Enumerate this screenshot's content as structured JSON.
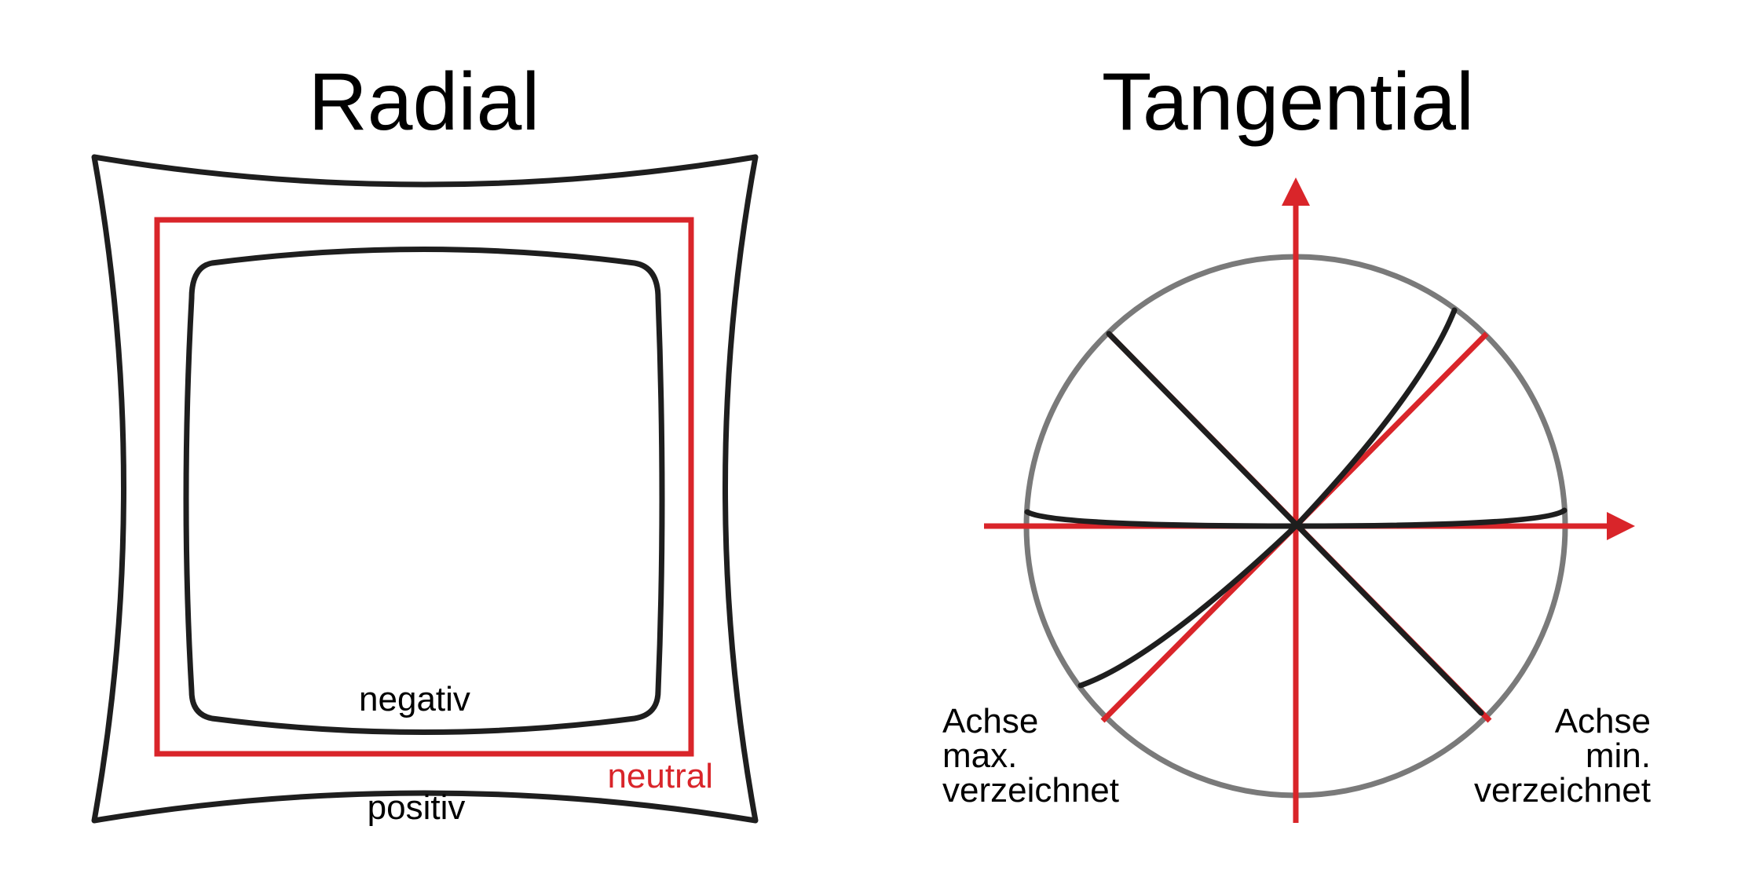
{
  "panels": {
    "radial": {
      "title": "Radial",
      "label_negative": "negativ",
      "label_neutral": "neutral",
      "label_positive": "positiv"
    },
    "tangential": {
      "title": "Tangential",
      "label_left": [
        "Achse",
        "max.",
        "verzeichnet"
      ],
      "label_right": [
        "Achse",
        "min.",
        "verzeichnet"
      ]
    }
  },
  "colors": {
    "accent_red": "#d9252a",
    "outline_dark": "#1e1e1e",
    "circle_grey": "#7a7a7a",
    "background": "#ffffff"
  }
}
